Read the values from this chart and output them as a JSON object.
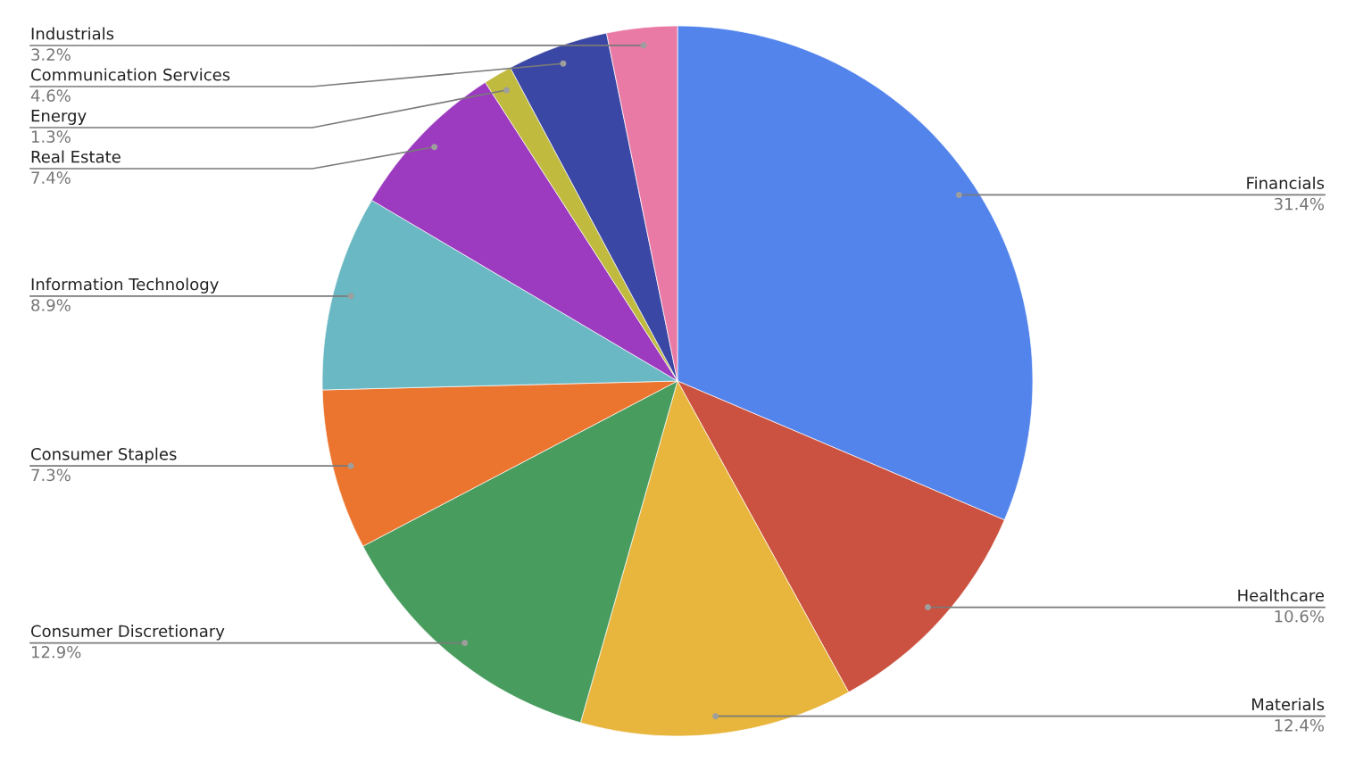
{
  "chart_data": {
    "type": "pie",
    "categories": [
      "Financials",
      "Healthcare",
      "Materials",
      "Consumer Discretionary",
      "Consumer Staples",
      "Information Technology",
      "Real Estate",
      "Energy",
      "Communication Services",
      "Industrials"
    ],
    "values": [
      31.4,
      10.6,
      12.4,
      12.9,
      7.3,
      8.9,
      7.4,
      1.3,
      4.6,
      3.2
    ],
    "colors": [
      "#5384ec",
      "#cb5140",
      "#e8b53d",
      "#489c5e",
      "#eb742e",
      "#6ab8c3",
      "#9c3bbf",
      "#c0bb3f",
      "#3b47a4",
      "#e97aa5"
    ],
    "value_labels": [
      "31.4%",
      "10.6%",
      "12.4%",
      "12.9%",
      "7.3%",
      "8.9%",
      "7.4%",
      "1.3%",
      "4.6%",
      "3.2%"
    ]
  }
}
